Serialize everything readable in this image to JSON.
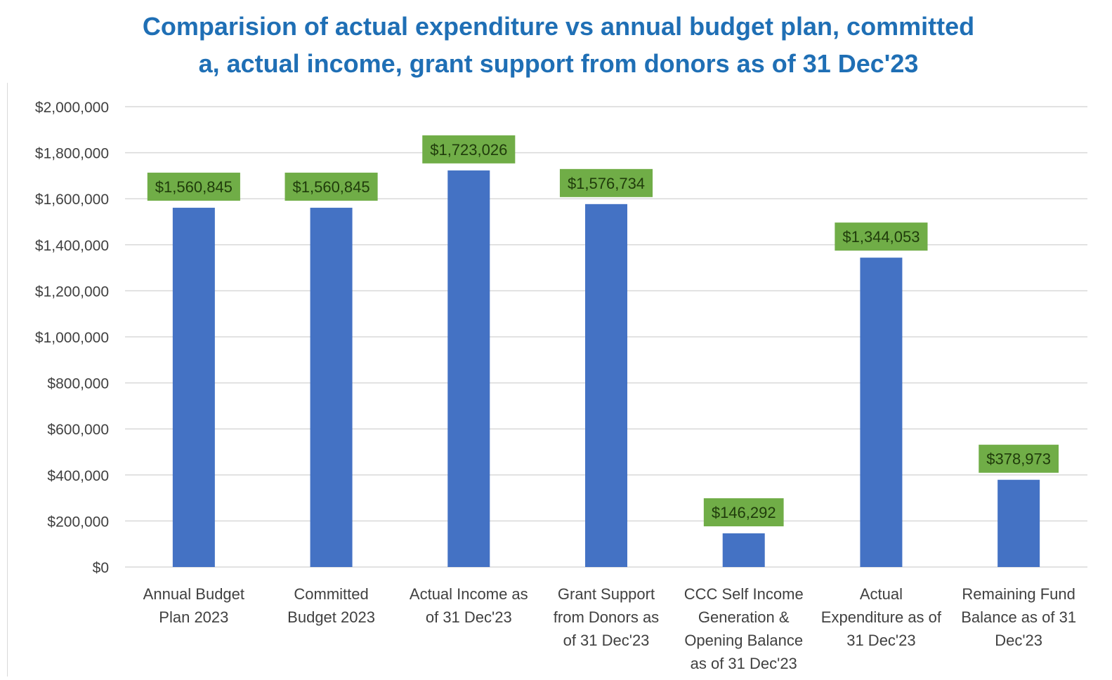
{
  "colors": {
    "title": "#1f6fb5",
    "bar": "#4472c4",
    "label_bg": "#70ad47",
    "label_text": "#1f3b0b",
    "grid": "#d9d9d9",
    "axis_text": "#404040"
  },
  "chart_data": {
    "type": "bar",
    "title_lines": [
      "Comparision of actual expenditure vs annual budget plan, committed",
      "a, actual income, grant support from donors as of  31 Dec'23"
    ],
    "xlabel": "",
    "ylabel": "",
    "ylim": [
      0,
      2000000
    ],
    "yticks": [
      {
        "value": 0,
        "label": "$0"
      },
      {
        "value": 200000,
        "label": "$200,000"
      },
      {
        "value": 400000,
        "label": "$400,000"
      },
      {
        "value": 600000,
        "label": "$600,000"
      },
      {
        "value": 800000,
        "label": "$800,000"
      },
      {
        "value": 1000000,
        "label": "$1,000,000"
      },
      {
        "value": 1200000,
        "label": "$1,200,000"
      },
      {
        "value": 1400000,
        "label": "$1,400,000"
      },
      {
        "value": 1600000,
        "label": "$1,600,000"
      },
      {
        "value": 1800000,
        "label": "$1,800,000"
      },
      {
        "value": 2000000,
        "label": "$2,000,000"
      }
    ],
    "grid": true,
    "legend": "none",
    "categories": [
      [
        "Annual Budget",
        "Plan 2023"
      ],
      [
        "Committed",
        "Budget 2023"
      ],
      [
        "Actual Income as",
        "of 31  Dec'23"
      ],
      [
        "Grant Support",
        "from Donors as",
        "of 31 Dec'23"
      ],
      [
        "CCC Self Income",
        "Generation &",
        "Opening Balance",
        "as of 31 Dec'23"
      ],
      [
        "Actual",
        "Expenditure as of",
        "31 Dec'23"
      ],
      [
        "Remaining Fund",
        "Balance as of 31",
        "Dec'23"
      ]
    ],
    "values": [
      1560845,
      1560845,
      1723026,
      1576734,
      146292,
      1344053,
      378973
    ],
    "data_labels": [
      "$1,560,845",
      "$1,560,845",
      "$1,723,026",
      "$1,576,734",
      "$146,292",
      "$1,344,053",
      "$378,973"
    ]
  }
}
